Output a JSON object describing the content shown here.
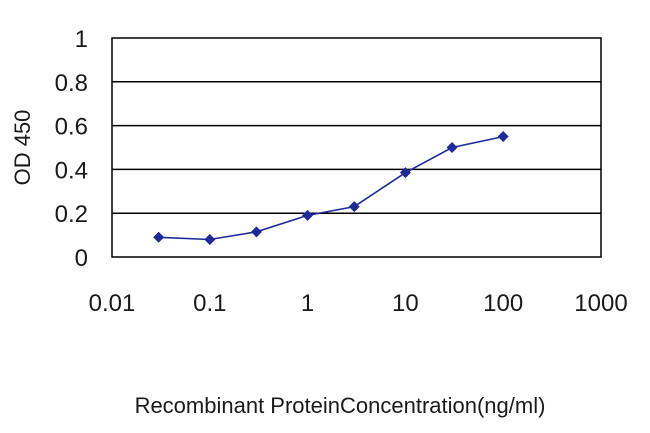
{
  "chart_data": {
    "type": "line",
    "title": "",
    "xlabel": "Recombinant ProteinConcentration(ng/ml)",
    "ylabel": "OD 450",
    "x_scale": "log",
    "xlim": [
      0.01,
      1000
    ],
    "ylim": [
      0,
      1
    ],
    "x_ticks": [
      0.01,
      0.1,
      1,
      10,
      100,
      1000
    ],
    "x_tick_labels": [
      "0.01",
      "0.1",
      "1",
      "10",
      "100",
      "1000"
    ],
    "y_ticks": [
      0,
      0.2,
      0.4,
      0.6,
      0.8,
      1
    ],
    "y_tick_labels": [
      "0",
      "0.2",
      "0.4",
      "0.6",
      "0.8",
      "1"
    ],
    "grid": "horizontal",
    "colors": {
      "series": "#1f2a9a",
      "grid": "#000000",
      "frame": "#000000"
    },
    "series": [
      {
        "marker": "diamond-icon",
        "x": [
          0.03,
          0.1,
          0.3,
          1,
          3,
          10,
          30,
          100
        ],
        "y": [
          0.09,
          0.08,
          0.115,
          0.19,
          0.23,
          0.385,
          0.5,
          0.55
        ]
      }
    ]
  }
}
